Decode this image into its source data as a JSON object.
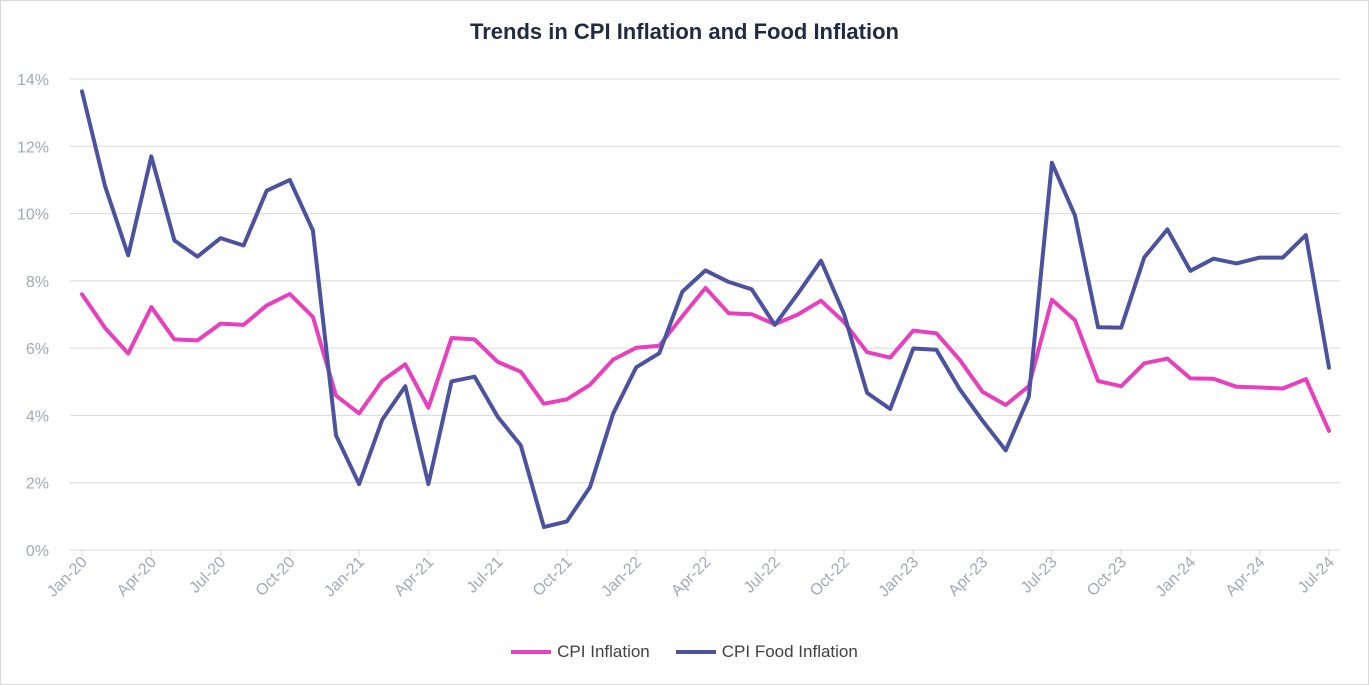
{
  "chart_data": {
    "type": "line",
    "title": "Trends in CPI Inflation and Food Inflation",
    "xlabel": "",
    "ylabel": "",
    "ylim": [
      0,
      14
    ],
    "y_ticks": [
      "0%",
      "2%",
      "4%",
      "6%",
      "8%",
      "10%",
      "12%",
      "14%"
    ],
    "grid": true,
    "legend_position": "bottom",
    "x_tick_labels": [
      "Jan-20",
      "Apr-20",
      "Jul-20",
      "Oct-20",
      "Jan-21",
      "Apr-21",
      "Jul-21",
      "Oct-21",
      "Jan-22",
      "Apr-22",
      "Jul-22",
      "Oct-22",
      "Jan-23",
      "Apr-23",
      "Jul-23",
      "Oct-23",
      "Jan-24",
      "Apr-24",
      "Jul-24"
    ],
    "x": [
      "Jan-20",
      "Feb-20",
      "Mar-20",
      "Apr-20",
      "May-20",
      "Jun-20",
      "Jul-20",
      "Aug-20",
      "Sep-20",
      "Oct-20",
      "Nov-20",
      "Dec-20",
      "Jan-21",
      "Feb-21",
      "Mar-21",
      "Apr-21",
      "May-21",
      "Jun-21",
      "Jul-21",
      "Aug-21",
      "Sep-21",
      "Oct-21",
      "Nov-21",
      "Dec-21",
      "Jan-22",
      "Feb-22",
      "Mar-22",
      "Apr-22",
      "May-22",
      "Jun-22",
      "Jul-22",
      "Aug-22",
      "Sep-22",
      "Oct-22",
      "Nov-22",
      "Dec-22",
      "Jan-23",
      "Feb-23",
      "Mar-23",
      "Apr-23",
      "May-23",
      "Jun-23",
      "Jul-23",
      "Aug-23",
      "Sep-23",
      "Oct-23",
      "Nov-23",
      "Dec-23",
      "Jan-24",
      "Feb-24",
      "Mar-24",
      "Apr-24",
      "May-24",
      "Jun-24",
      "Jul-24"
    ],
    "series": [
      {
        "name": "CPI Inflation",
        "color": "#e83fbe",
        "values": [
          7.6,
          6.6,
          5.84,
          7.22,
          6.26,
          6.23,
          6.73,
          6.69,
          7.27,
          7.61,
          6.93,
          4.59,
          4.06,
          5.03,
          5.52,
          4.23,
          6.3,
          6.26,
          5.59,
          5.3,
          4.35,
          4.48,
          4.91,
          5.66,
          6.01,
          6.07,
          6.95,
          7.79,
          7.04,
          7.01,
          6.71,
          7.0,
          7.41,
          6.77,
          5.88,
          5.72,
          6.52,
          6.44,
          5.66,
          4.7,
          4.31,
          4.87,
          7.44,
          6.83,
          5.02,
          4.87,
          5.55,
          5.69,
          5.1,
          5.09,
          4.85,
          4.83,
          4.8,
          5.08,
          3.54
        ]
      },
      {
        "name": "CPI Food Inflation",
        "color": "#4b53a0",
        "values": [
          13.63,
          10.81,
          8.76,
          11.7,
          9.2,
          8.72,
          9.27,
          9.05,
          10.68,
          11.0,
          9.5,
          3.41,
          1.96,
          3.87,
          4.87,
          1.96,
          5.01,
          5.15,
          3.96,
          3.11,
          0.68,
          0.85,
          1.87,
          4.05,
          5.43,
          5.85,
          7.68,
          8.31,
          7.97,
          7.75,
          6.69,
          7.62,
          8.6,
          7.01,
          4.67,
          4.19,
          5.99,
          5.95,
          4.79,
          3.84,
          2.96,
          4.55,
          11.51,
          9.94,
          6.62,
          6.61,
          8.7,
          9.53,
          8.3,
          8.66,
          8.52,
          8.69,
          8.69,
          9.36,
          5.42
        ]
      }
    ]
  }
}
